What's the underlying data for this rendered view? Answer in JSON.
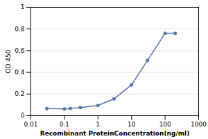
{
  "chart_data": {
    "type": "line",
    "x": [
      0.03,
      0.1,
      0.15,
      0.3,
      1.0,
      3.0,
      10.0,
      30.0,
      100.0,
      200.0
    ],
    "values": [
      0.065,
      0.063,
      0.068,
      0.075,
      0.095,
      0.155,
      0.285,
      0.51,
      0.76,
      0.76
    ],
    "xlabel": "Recombinant ProteinConcentration(ng/ml)",
    "ylabel": "OD 450",
    "log": "x",
    "xlim": [
      0.01,
      1000
    ],
    "ylim": [
      0,
      1
    ],
    "xticks": [
      0.01,
      0.1,
      1,
      10,
      100,
      1000
    ],
    "yticks": [
      0,
      0.2,
      0.4,
      0.6,
      0.8,
      1
    ],
    "color": "#5577aa",
    "marker": "circle",
    "grid": true
  }
}
